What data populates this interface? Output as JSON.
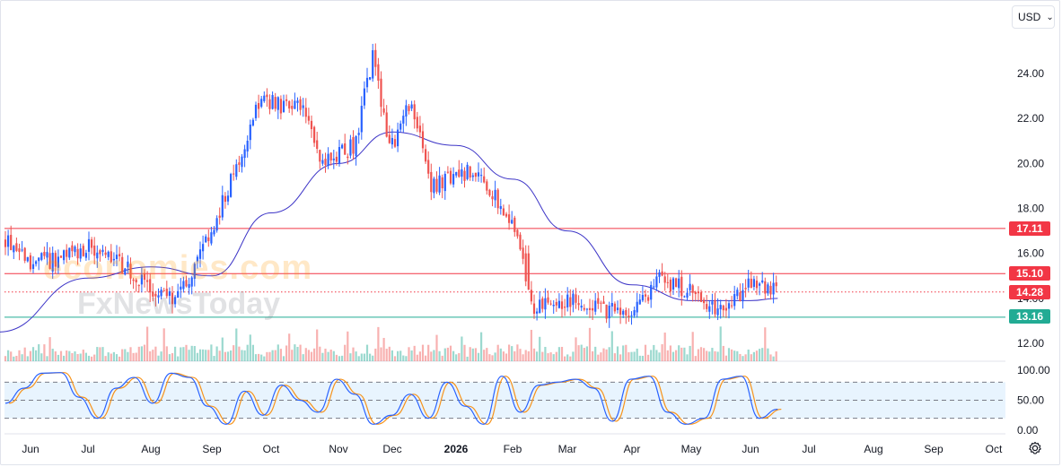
{
  "toolbar": {
    "currency": "USD"
  },
  "watermark": {
    "line1": "economies.com",
    "line2": "FxNewsToday"
  },
  "levels": [
    {
      "name": "resistance-17",
      "value": 17.11,
      "label": "17.11",
      "color": "#f23645",
      "style": "solid"
    },
    {
      "name": "resistance-15",
      "value": 15.1,
      "label": "15.10",
      "color": "#f23645",
      "style": "solid"
    },
    {
      "name": "last-price",
      "value": 14.28,
      "label": "14.28",
      "color": "#f23645",
      "style": "dotted"
    },
    {
      "name": "support-13",
      "value": 13.16,
      "label": "13.16",
      "color": "#22ab94",
      "style": "solid"
    }
  ],
  "colors": {
    "up": "#2962ff",
    "down": "#ef5350",
    "ma": "#3d35c7",
    "stoch_k": "#2962ff",
    "stoch_d": "#f7931a",
    "grid": "#e0e3eb"
  },
  "chart_data": [
    {
      "type": "candlestick",
      "y_ticks": [
        "24.00",
        "22.00",
        "20.00",
        "18.00",
        "16.00",
        "14.00",
        "12.00"
      ],
      "ylim": [
        11.5,
        25.8
      ],
      "x_ticks": [
        "Jun",
        "Jul",
        "Aug",
        "Sep",
        "Oct",
        "Nov",
        "Dec",
        "2026",
        "Feb",
        "Mar",
        "Apr",
        "May",
        "Jun",
        "Jul",
        "Aug",
        "Sep",
        "Oct"
      ],
      "bold_x_ticks": [
        "2026"
      ],
      "price_path": [
        {
          "month": "2025-05-15",
          "close": 17.0
        },
        {
          "month": "2025-06-01",
          "close": 15.6
        },
        {
          "month": "2025-06-20",
          "close": 15.8
        },
        {
          "month": "2025-07-01",
          "close": 16.3
        },
        {
          "month": "2025-07-20",
          "close": 15.3
        },
        {
          "month": "2025-08-01",
          "close": 14.3
        },
        {
          "month": "2025-08-15",
          "close": 14.0
        },
        {
          "month": "2025-09-01",
          "close": 16.9
        },
        {
          "month": "2025-09-15",
          "close": 20.3
        },
        {
          "month": "2025-09-25",
          "close": 22.8
        },
        {
          "month": "2025-10-15",
          "close": 22.4
        },
        {
          "month": "2025-10-25",
          "close": 20.0
        },
        {
          "month": "2025-11-10",
          "close": 20.8
        },
        {
          "month": "2025-11-20",
          "close": 24.8
        },
        {
          "month": "2025-11-30",
          "close": 20.6
        },
        {
          "month": "2025-12-10",
          "close": 22.8
        },
        {
          "month": "2025-12-20",
          "close": 19.0
        },
        {
          "month": "2026-01-10",
          "close": 19.7
        },
        {
          "month": "2026-01-25",
          "close": 18.3
        },
        {
          "month": "2026-02-05",
          "close": 16.5
        },
        {
          "month": "2026-02-10",
          "close": 13.5
        },
        {
          "month": "2026-03-01",
          "close": 13.9
        },
        {
          "month": "2026-04-01",
          "close": 13.2
        },
        {
          "month": "2026-04-15",
          "close": 14.9
        },
        {
          "month": "2026-05-01",
          "close": 14.3
        },
        {
          "month": "2026-05-15",
          "close": 13.3
        },
        {
          "month": "2026-06-01",
          "close": 14.6
        },
        {
          "month": "2026-06-15",
          "close": 14.28
        }
      ],
      "moving_average": [
        {
          "month": "2025-05-15",
          "value": 12.5
        },
        {
          "month": "2025-07-01",
          "value": 14.9
        },
        {
          "month": "2025-08-01",
          "value": 15.4
        },
        {
          "month": "2025-09-01",
          "value": 15.0
        },
        {
          "month": "2025-10-01",
          "value": 17.8
        },
        {
          "month": "2025-11-01",
          "value": 20.0
        },
        {
          "month": "2025-12-01",
          "value": 21.4
        },
        {
          "month": "2026-01-01",
          "value": 20.8
        },
        {
          "month": "2026-02-01",
          "value": 19.3
        },
        {
          "month": "2026-03-01",
          "value": 17.0
        },
        {
          "month": "2026-04-01",
          "value": 14.6
        },
        {
          "month": "2026-05-01",
          "value": 13.9
        },
        {
          "month": "2026-06-01",
          "value": 13.9
        },
        {
          "month": "2026-06-15",
          "value": 14.0
        }
      ]
    },
    {
      "type": "line",
      "y_ticks": [
        "100.00",
        "50.00",
        "0.00"
      ],
      "ylim": [
        0,
        100
      ],
      "bands": [
        20,
        50,
        80
      ],
      "series": [
        {
          "key": "k",
          "values": [
            45,
            70,
            95,
            96,
            55,
            20,
            70,
            88,
            45,
            95,
            88,
            40,
            10,
            65,
            25,
            75,
            50,
            30,
            85,
            60,
            10,
            25,
            60,
            20,
            80,
            40,
            10,
            90,
            30,
            75,
            80,
            85,
            70,
            15,
            85,
            90,
            30,
            10,
            20,
            85,
            90,
            20,
            35
          ]
        }
      ]
    }
  ]
}
